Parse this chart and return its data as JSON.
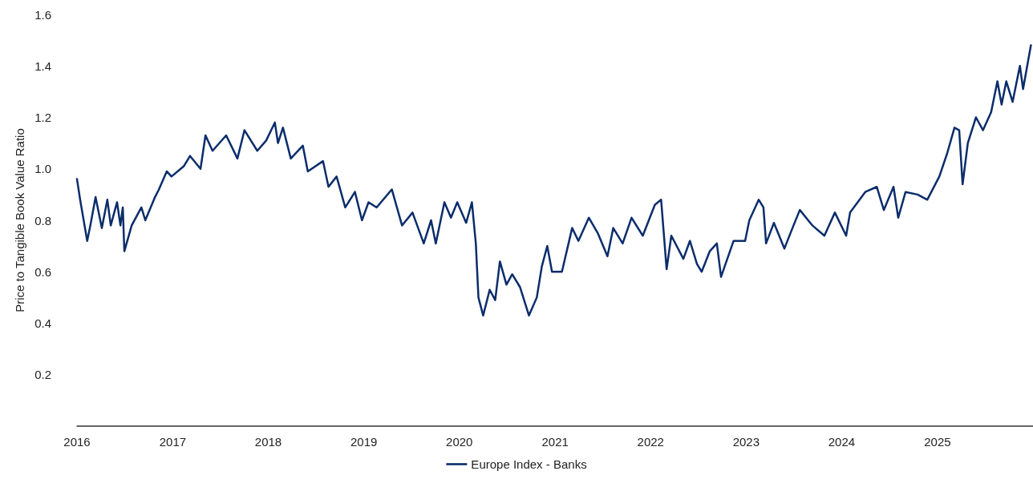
{
  "chart_data": {
    "type": "line",
    "ylabel": "Price to Tangible Book Value Ratio",
    "legend": "bottom",
    "grid": false,
    "marker": "none",
    "line_style": "solid",
    "xlim": [
      "2016-01-01",
      "2026-01-01"
    ],
    "xticks": [
      {
        "value": "2016-01-01",
        "label": "2016"
      },
      {
        "value": "2017-01-01",
        "label": "2017"
      },
      {
        "value": "2018-01-01",
        "label": "2018"
      },
      {
        "value": "2019-01-01",
        "label": "2019"
      },
      {
        "value": "2020-01-01",
        "label": "2020"
      },
      {
        "value": "2021-01-01",
        "label": "2021"
      },
      {
        "value": "2022-01-01",
        "label": "2022"
      },
      {
        "value": "2023-01-01",
        "label": "2023"
      },
      {
        "value": "2024-01-01",
        "label": "2024"
      },
      {
        "value": "2025-01-01",
        "label": "2025"
      }
    ],
    "ylim": [
      0,
      1.6
    ],
    "yticks": [
      0.2,
      0.4,
      0.6,
      0.8,
      {
        "value": 1,
        "label": "1.0"
      },
      1.2,
      1.4,
      1.6
    ],
    "x": [
      "2016-01-01",
      "2016-01-13",
      "2016-02-09",
      "2016-02-21",
      "2016-03-12",
      "2016-04-05",
      "2016-04-26",
      "2016-05-09",
      "2016-06-02",
      "2016-06-15",
      "2016-06-24",
      "2016-06-30",
      "2016-07-28",
      "2016-09-03",
      "2016-09-18",
      "2016-10-25",
      "2016-11-09",
      "2016-12-09",
      "2016-12-27",
      "2017-02-12",
      "2017-03-08",
      "2017-04-17",
      "2017-05-06",
      "2017-06-02",
      "2017-07-24",
      "2017-09-05",
      "2017-10-02",
      "2017-11-20",
      "2017-12-24",
      "2018-01-26",
      "2018-02-07",
      "2018-02-26",
      "2018-03-28",
      "2018-05-13",
      "2018-06-01",
      "2018-07-29",
      "2018-08-19",
      "2018-09-19",
      "2018-10-22",
      "2018-11-28",
      "2018-12-25",
      "2019-01-19",
      "2019-02-19",
      "2019-04-18",
      "2019-05-27",
      "2019-07-06",
      "2019-08-18",
      "2019-09-15",
      "2019-10-03",
      "2019-11-05",
      "2019-11-30",
      "2019-12-24",
      "2020-01-27",
      "2020-02-18",
      "2020-03-04",
      "2020-03-14",
      "2020-04-01",
      "2020-04-26",
      "2020-05-17",
      "2020-06-04",
      "2020-06-29",
      "2020-07-21",
      "2020-08-20",
      "2020-09-23",
      "2020-10-23",
      "2020-11-11",
      "2020-12-02",
      "2020-12-20",
      "2021-01-27",
      "2021-03-07",
      "2021-03-31",
      "2021-05-10",
      "2021-06-13",
      "2021-07-20",
      "2021-08-11",
      "2021-09-16",
      "2021-10-20",
      "2021-12-02",
      "2022-01-17",
      "2022-02-10",
      "2022-03-03",
      "2022-03-21",
      "2022-05-06",
      "2022-05-31",
      "2022-06-27",
      "2022-07-15",
      "2022-08-15",
      "2022-09-11",
      "2022-09-27",
      "2022-11-14",
      "2022-12-28",
      "2023-01-13",
      "2023-02-18",
      "2023-03-08",
      "2023-03-18",
      "2023-04-17",
      "2023-05-27",
      "2023-06-27",
      "2023-07-25",
      "2023-09-11",
      "2023-10-27",
      "2023-12-06",
      "2024-01-18",
      "2024-02-02",
      "2024-03-31",
      "2024-05-14",
      "2024-06-10",
      "2024-07-17",
      "2024-08-04",
      "2024-09-01",
      "2024-10-17",
      "2024-11-23",
      "2025-01-08",
      "2025-02-07",
      "2025-03-07",
      "2025-03-25",
      "2025-04-07",
      "2025-04-27",
      "2025-05-28",
      "2025-06-24",
      "2025-07-25",
      "2025-08-18",
      "2025-09-03",
      "2025-09-21",
      "2025-10-15",
      "2025-11-12",
      "2025-11-24",
      "2025-12-24"
    ],
    "series": [
      {
        "name": "Europe Index - Banks",
        "color": "#0b2d6b",
        "values": [
          0.96,
          0.88,
          0.72,
          0.78,
          0.89,
          0.77,
          0.88,
          0.78,
          0.87,
          0.78,
          0.85,
          0.68,
          0.78,
          0.85,
          0.8,
          0.89,
          0.92,
          0.99,
          0.97,
          1.01,
          1.05,
          1.0,
          1.13,
          1.07,
          1.13,
          1.04,
          1.15,
          1.07,
          1.11,
          1.18,
          1.1,
          1.16,
          1.04,
          1.09,
          0.99,
          1.03,
          0.93,
          0.97,
          0.85,
          0.91,
          0.8,
          0.87,
          0.85,
          0.92,
          0.78,
          0.83,
          0.71,
          0.8,
          0.71,
          0.87,
          0.81,
          0.87,
          0.79,
          0.87,
          0.71,
          0.5,
          0.43,
          0.53,
          0.49,
          0.64,
          0.55,
          0.59,
          0.54,
          0.43,
          0.5,
          0.62,
          0.7,
          0.6,
          0.6,
          0.77,
          0.72,
          0.81,
          0.75,
          0.66,
          0.77,
          0.71,
          0.81,
          0.74,
          0.86,
          0.88,
          0.61,
          0.74,
          0.65,
          0.72,
          0.63,
          0.6,
          0.68,
          0.71,
          0.58,
          0.72,
          0.72,
          0.8,
          0.88,
          0.85,
          0.71,
          0.79,
          0.69,
          0.77,
          0.84,
          0.78,
          0.74,
          0.83,
          0.74,
          0.83,
          0.91,
          0.93,
          0.84,
          0.93,
          0.81,
          0.91,
          0.9,
          0.88,
          0.97,
          1.06,
          1.16,
          1.15,
          0.94,
          1.1,
          1.2,
          1.15,
          1.22,
          1.34,
          1.25,
          1.34,
          1.26,
          1.4,
          1.31,
          1.48
        ]
      }
    ]
  }
}
